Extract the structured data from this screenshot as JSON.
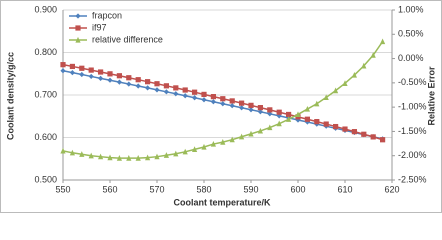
{
  "chart_data": {
    "type": "line",
    "x_label": "Coolant temperature/K",
    "y_label": "Coolant density/g/cc",
    "y2_label": "Relative Error",
    "x": [
      550,
      552,
      554,
      556,
      558,
      560,
      562,
      564,
      566,
      568,
      570,
      572,
      574,
      576,
      578,
      580,
      582,
      584,
      586,
      588,
      590,
      592,
      594,
      596,
      598,
      600,
      602,
      604,
      606,
      608,
      610,
      612,
      614,
      616,
      618
    ],
    "series": [
      {
        "name": "frapcon",
        "color": "#4f81bd",
        "marker": "diamond",
        "values": [
          0.757,
          0.7526,
          0.7482,
          0.7437,
          0.7392,
          0.7348,
          0.7303,
          0.7257,
          0.7212,
          0.7167,
          0.7121,
          0.7075,
          0.7029,
          0.6983,
          0.6936,
          0.6889,
          0.6842,
          0.6795,
          0.6748,
          0.67,
          0.6653,
          0.6605,
          0.6557,
          0.6508,
          0.6461,
          0.6412,
          0.6364,
          0.6315,
          0.6266,
          0.6216,
          0.6167,
          0.6117,
          0.6067,
          0.6018,
          0.5968
        ]
      },
      {
        "name": "if97",
        "color": "#c0504d",
        "marker": "square",
        "values": [
          0.7714,
          0.7672,
          0.7629,
          0.7586,
          0.7541,
          0.7498,
          0.7453,
          0.7406,
          0.736,
          0.7313,
          0.7265,
          0.7216,
          0.7167,
          0.7117,
          0.7066,
          0.7014,
          0.6962,
          0.6912,
          0.6861,
          0.6808,
          0.6756,
          0.6703,
          0.665,
          0.6595,
          0.6542,
          0.6486,
          0.643,
          0.6374,
          0.6316,
          0.6257,
          0.6198,
          0.6138,
          0.6076,
          0.6014,
          0.5947
        ]
      },
      {
        "name": "relative difference",
        "color": "#9bbb59",
        "marker": "triangle",
        "axis": "y2",
        "values": [
          -1.9,
          -1.94,
          -1.97,
          -2.0,
          -2.02,
          -2.04,
          -2.05,
          -2.05,
          -2.05,
          -2.04,
          -2.02,
          -1.99,
          -1.96,
          -1.92,
          -1.87,
          -1.82,
          -1.76,
          -1.72,
          -1.67,
          -1.61,
          -1.55,
          -1.49,
          -1.42,
          -1.34,
          -1.25,
          -1.15,
          -1.04,
          -0.93,
          -0.8,
          -0.66,
          -0.51,
          -0.34,
          -0.15,
          0.07,
          0.35
        ]
      }
    ],
    "xlim": [
      550,
      620
    ],
    "xticks": [
      550,
      560,
      570,
      580,
      590,
      600,
      610,
      620
    ],
    "ylim": [
      0.5,
      0.9
    ],
    "yticks": [
      {
        "value": 0.5,
        "label": "0.500"
      },
      {
        "value": 0.6,
        "label": "0.600"
      },
      {
        "value": 0.7,
        "label": "0.700"
      },
      {
        "value": 0.8,
        "label": "0.800"
      },
      {
        "value": 0.9,
        "label": "0.900"
      }
    ],
    "y2lim": [
      -2.5,
      1.0
    ],
    "y2ticks": [
      {
        "value": -2.5,
        "label": "-2.50%"
      },
      {
        "value": -2.0,
        "label": "-2.00%"
      },
      {
        "value": -1.5,
        "label": "-1.50%"
      },
      {
        "value": -1.0,
        "label": "-1.00%"
      },
      {
        "value": -0.5,
        "label": "-0.50%"
      },
      {
        "value": 0,
        "label": "0.00%"
      },
      {
        "value": 0.5,
        "label": "0.50%"
      },
      {
        "value": 1.0,
        "label": "1.00%"
      }
    ],
    "grid": true,
    "legend": "upper left"
  }
}
